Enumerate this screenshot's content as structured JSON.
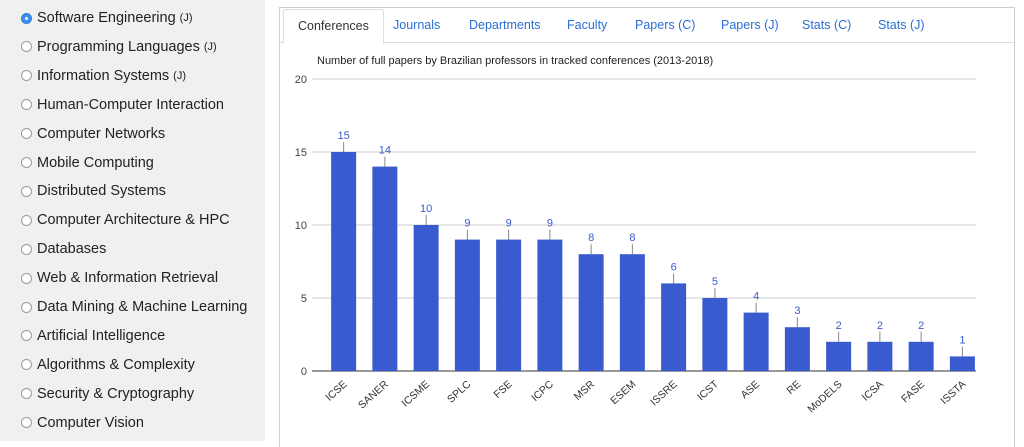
{
  "sidebar": {
    "areas": [
      {
        "name": "Software Engineering",
        "tag": "(J)",
        "selected": true
      },
      {
        "name": "Programming Languages",
        "tag": "(J)",
        "selected": false
      },
      {
        "name": "Information Systems",
        "tag": "(J)",
        "selected": false
      },
      {
        "name": "Human-Computer Interaction",
        "tag": "",
        "selected": false
      },
      {
        "name": "Computer Networks",
        "tag": "",
        "selected": false
      },
      {
        "name": "Mobile Computing",
        "tag": "",
        "selected": false
      },
      {
        "name": "Distributed Systems",
        "tag": "",
        "selected": false
      },
      {
        "name": "Computer Architecture & HPC",
        "tag": "",
        "selected": false
      },
      {
        "name": "Databases",
        "tag": "",
        "selected": false
      },
      {
        "name": "Web & Information Retrieval",
        "tag": "",
        "selected": false
      },
      {
        "name": "Data Mining & Machine Learning",
        "tag": "",
        "selected": false
      },
      {
        "name": "Artificial Intelligence",
        "tag": "",
        "selected": false
      },
      {
        "name": "Algorithms & Complexity",
        "tag": "",
        "selected": false
      },
      {
        "name": "Security & Cryptography",
        "tag": "",
        "selected": false
      },
      {
        "name": "Computer Vision",
        "tag": "",
        "selected": false
      }
    ]
  },
  "tabs": [
    {
      "label": "Conferences",
      "active": true
    },
    {
      "label": "Journals",
      "active": false
    },
    {
      "label": "Departments",
      "active": false
    },
    {
      "label": "Faculty",
      "active": false
    },
    {
      "label": "Papers (C)",
      "active": false
    },
    {
      "label": "Papers (J)",
      "active": false
    },
    {
      "label": "Stats (C)",
      "active": false
    },
    {
      "label": "Stats (J)",
      "active": false
    }
  ],
  "chart_data": {
    "type": "bar",
    "title": "Number of full papers by Brazilian professors in tracked conferences (2013-2018)",
    "categories": [
      "ICSE",
      "SANER",
      "ICSME",
      "SPLC",
      "FSE",
      "ICPC",
      "MSR",
      "ESEM",
      "ISSRE",
      "ICST",
      "ASE",
      "RE",
      "MoDELS",
      "ICSA",
      "FASE",
      "ISSTA"
    ],
    "values": [
      15,
      14,
      10,
      9,
      9,
      9,
      8,
      8,
      6,
      5,
      4,
      3,
      2,
      2,
      2,
      1
    ],
    "ylim": [
      0,
      20
    ],
    "yticks": [
      0,
      5,
      10,
      15,
      20
    ],
    "grid": true,
    "legend": "none",
    "bar_color": "#3a5bcf",
    "label_color": "#3a5bcf"
  }
}
